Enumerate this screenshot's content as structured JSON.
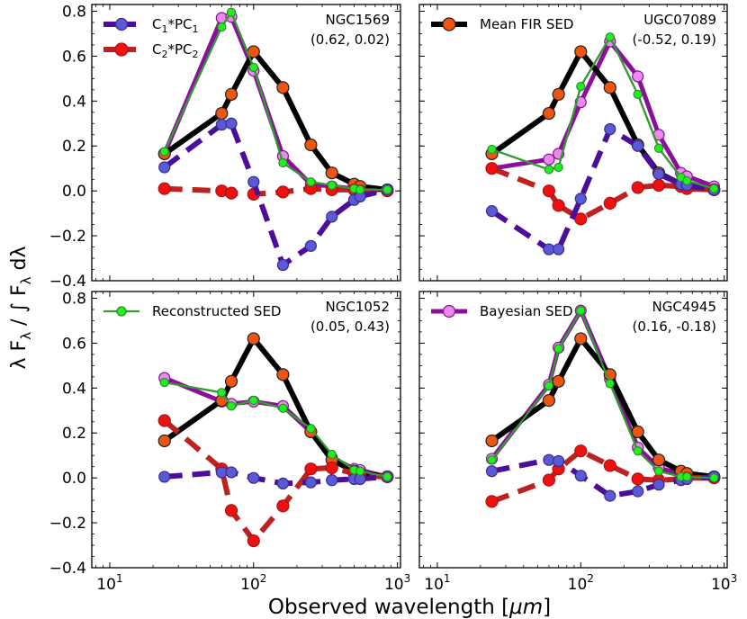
{
  "figure": {
    "xlabel_prefix": "Observed wavelength [",
    "xlabel_unit": "μm",
    "xlabel_suffix": "]",
    "ylabel": "λ F",
    "ylabel_sub": "λ",
    "ylabel_mid": " / ∫ F",
    "ylabel_sub2": "λ",
    "ylabel_end": " dλ"
  },
  "chart_data": {
    "type": "line",
    "xscale": "log",
    "xlim": [
      7.5,
      1050
    ],
    "ylim": [
      -0.4,
      0.83
    ],
    "yticks": [
      -0.4,
      -0.2,
      0.0,
      0.2,
      0.4,
      0.6,
      0.8
    ],
    "ytick_labels": [
      "−0.4",
      "−0.2",
      "0.0",
      "0.2",
      "0.4",
      "0.6",
      "0.8"
    ],
    "xticks": [
      10,
      100,
      1000
    ],
    "xtick_bases": [
      "10",
      "10",
      "10"
    ],
    "xtick_exps": [
      "1",
      "2",
      "3"
    ],
    "x": [
      24,
      60,
      70,
      100,
      160,
      250,
      350,
      500,
      550,
      850
    ],
    "colors": {
      "mean": "#000000",
      "mean_marker": "#ee5511",
      "pc1": "#4b0d9a",
      "pc1_marker": "#5a5ad6",
      "pc2": "#bb2222",
      "pc2_marker": "#ee1111",
      "recon": "#339933",
      "recon_marker": "#22ee22",
      "bayes": "#8b0f9a",
      "bayes_marker": "#ee88ee"
    },
    "legend_labels": {
      "pc1_main": "C",
      "pc1_sub1": "1",
      "pc1_mid": "*PC",
      "pc1_sub2": "1",
      "pc2_main": "C",
      "pc2_sub1": "2",
      "pc2_mid": "*PC",
      "pc2_sub2": "2",
      "mean": "Mean FIR SED",
      "recon": "Reconstructed SED",
      "bayes": "Bayesian SED"
    },
    "mean_sed": [
      0.165,
      0.345,
      0.43,
      0.62,
      0.46,
      0.205,
      0.08,
      0.03,
      0.02,
      0.005
    ],
    "panels": [
      {
        "name": "NGC1569",
        "coeffs": "(0.62, 0.02)",
        "pc1": [
          0.105,
          0.295,
          0.3,
          0.04,
          -0.33,
          -0.245,
          -0.115,
          -0.04,
          -0.025,
          0.005
        ],
        "pc2": [
          0.01,
          0.0,
          -0.01,
          -0.015,
          -0.005,
          0.01,
          0.005,
          0.005,
          0.0,
          0.0
        ],
        "recon": [
          0.175,
          0.73,
          0.795,
          0.55,
          0.125,
          0.04,
          0.025,
          0.01,
          0.005,
          0.005
        ],
        "bayes": [
          0.165,
          0.77,
          0.775,
          0.535,
          0.155,
          0.03,
          0.02,
          0.01,
          0.005,
          0.005
        ]
      },
      {
        "name": "UGC07089",
        "coeffs": "(-0.52, 0.19)",
        "pc1": [
          -0.09,
          -0.26,
          -0.26,
          -0.035,
          0.275,
          0.2,
          0.075,
          0.03,
          0.025,
          0.005
        ],
        "pc2": [
          0.1,
          0.0,
          -0.065,
          -0.125,
          -0.055,
          0.015,
          0.025,
          0.02,
          0.01,
          0.005
        ],
        "recon": [
          0.185,
          0.095,
          0.105,
          0.465,
          0.685,
          0.43,
          0.19,
          0.06,
          0.045,
          0.01
        ],
        "bayes": [
          0.1,
          0.14,
          0.165,
          0.395,
          0.665,
          0.51,
          0.25,
          0.08,
          0.065,
          0.02
        ]
      },
      {
        "name": "NGC1052",
        "coeffs": "(0.05, 0.43)",
        "pc1": [
          0.005,
          0.025,
          0.025,
          0.0,
          -0.025,
          -0.02,
          -0.01,
          -0.005,
          -0.005,
          0.005
        ],
        "pc2": [
          0.255,
          0.04,
          -0.145,
          -0.28,
          -0.125,
          0.04,
          0.045,
          0.02,
          0.01,
          0.005
        ],
        "recon": [
          0.425,
          0.38,
          0.32,
          0.345,
          0.31,
          0.22,
          0.105,
          0.035,
          0.03,
          0.005
        ],
        "bayes": [
          0.445,
          0.34,
          0.33,
          0.34,
          0.32,
          0.205,
          0.09,
          0.04,
          0.035,
          0.005
        ]
      },
      {
        "name": "NGC4945",
        "coeffs": "(0.16, -0.18)",
        "pc1": [
          0.03,
          0.08,
          0.075,
          0.01,
          -0.08,
          -0.06,
          -0.03,
          -0.01,
          -0.005,
          0.005
        ],
        "pc2": [
          -0.105,
          -0.01,
          0.04,
          0.12,
          0.055,
          -0.005,
          -0.01,
          -0.005,
          0.0,
          0.0
        ],
        "recon": [
          0.08,
          0.41,
          0.575,
          0.745,
          0.42,
          0.12,
          0.03,
          0.005,
          0.005,
          0.0
        ],
        "bayes": [
          0.085,
          0.415,
          0.58,
          0.745,
          0.44,
          0.135,
          0.045,
          0.015,
          0.01,
          0.005
        ]
      }
    ]
  }
}
